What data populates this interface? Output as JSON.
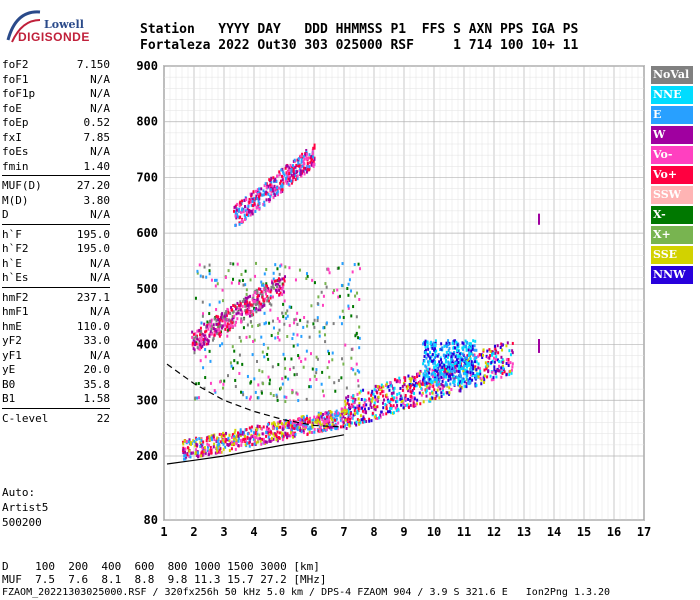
{
  "logo": {
    "top_text": "Lowell",
    "bottom_text": "DIGISONDE"
  },
  "header": {
    "line1": "Station   YYYY DAY   DDD HHMMSS P1  FFS S AXN PPS IGA PS",
    "line2": "Fortaleza 2022 Out30 303 025000 RSF     1 714 100 10+ 11"
  },
  "params": [
    {
      "label": "foF2",
      "value": "7.150"
    },
    {
      "label": "foF1",
      "value": "N/A"
    },
    {
      "label": "foF1p",
      "value": "N/A"
    },
    {
      "label": "foE",
      "value": "N/A"
    },
    {
      "label": "foEp",
      "value": "0.52"
    },
    {
      "label": "fxI",
      "value": "7.85"
    },
    {
      "label": "foEs",
      "value": "N/A"
    },
    {
      "label": "fmin",
      "value": "1.40"
    },
    {
      "label": "MUF(D)",
      "value": "27.20"
    },
    {
      "label": "M(D)",
      "value": "3.80"
    },
    {
      "label": "D",
      "value": "N/A"
    },
    {
      "label": "h`F",
      "value": "195.0"
    },
    {
      "label": "h`F2",
      "value": "195.0"
    },
    {
      "label": "h`E",
      "value": "N/A"
    },
    {
      "label": "h`Es",
      "value": "N/A"
    },
    {
      "label": "hmF2",
      "value": "237.1"
    },
    {
      "label": "hmF1",
      "value": "N/A"
    },
    {
      "label": "hmE",
      "value": "110.0"
    },
    {
      "label": "yF2",
      "value": "33.0"
    },
    {
      "label": "yF1",
      "value": "N/A"
    },
    {
      "label": "yE",
      "value": "20.0"
    },
    {
      "label": "B0",
      "value": "35.8"
    },
    {
      "label": "B1",
      "value": "1.58"
    },
    {
      "label": "C-level",
      "value": "22"
    }
  ],
  "auto": [
    "Auto:",
    "Artist5",
    "500200"
  ],
  "legend": [
    {
      "label": "NoVal",
      "color": "#808080"
    },
    {
      "label": "NNE",
      "color": "#00dcff"
    },
    {
      "label": "E",
      "color": "#28a0ff"
    },
    {
      "label": "W",
      "color": "#a000a0"
    },
    {
      "label": "Vo-",
      "color": "#ff40c0"
    },
    {
      "label": "Vo+",
      "color": "#ff0040"
    },
    {
      "label": "SSW",
      "color": "#ffb4b4"
    },
    {
      "label": "X-",
      "color": "#007800"
    },
    {
      "label": "X+",
      "color": "#78b450"
    },
    {
      "label": "SSE",
      "color": "#d2d200"
    },
    {
      "label": "NNW",
      "color": "#2800dc"
    }
  ],
  "footer": {
    "d_row": "D    100  200  400  600  800 1000 1500 3000 [km]",
    "muf_row": "MUF  7.5  7.6  8.1  8.8  9.8 11.3 15.7 27.2 [MHz]",
    "file_row": "FZAOM_20221303025000.RSF / 320fx256h 50 kHz 5.0 km / DPS-4 FZAOM 904 / 3.9 S 321.6 E   Ion2Png 1.3.20"
  },
  "chart_data": {
    "type": "scatter",
    "xlabel": "",
    "ylabel": "",
    "xlim": [
      1,
      17
    ],
    "ylim": [
      80,
      900
    ],
    "x_ticks": [
      "1",
      "2",
      "3",
      "4",
      "5",
      "6",
      "7",
      "8",
      "9",
      "10",
      "11",
      "12",
      "13",
      "14",
      "15",
      "16",
      "17"
    ],
    "y_ticks": [
      "80",
      "200",
      "300",
      "400",
      "500",
      "600",
      "700",
      "800",
      "900"
    ],
    "y_tick_values": [
      80,
      200,
      300,
      400,
      500,
      600,
      700,
      800,
      900
    ],
    "grid": true,
    "clusters": [
      {
        "name": "F-trace",
        "x": [
          1.6,
          7.2
        ],
        "y": [
          195,
          270
        ],
        "colors": [
          "#ff40c0",
          "#ff0040",
          "#a000a0",
          "#28a0ff",
          "#d2d200"
        ]
      },
      {
        "name": "F-trace-high",
        "x": [
          7.0,
          12.6
        ],
        "y": [
          240,
          400
        ],
        "colors": [
          "#ff40c0",
          "#ff0040",
          "#a000a0",
          "#d2d200",
          "#00dcff",
          "#2800dc"
        ]
      },
      {
        "name": "spread",
        "x": [
          2.0,
          7.5
        ],
        "y": [
          300,
          550
        ],
        "colors": [
          "#808080",
          "#78b450",
          "#007800",
          "#28a0ff",
          "#ff40c0"
        ]
      },
      {
        "name": "second-hop",
        "x": [
          1.9,
          5.0
        ],
        "y": [
          380,
          520
        ],
        "colors": [
          "#ff0040",
          "#ff40c0",
          "#a000a0",
          "#808080"
        ]
      },
      {
        "name": "third-hop",
        "x": [
          3.3,
          6.0
        ],
        "y": [
          610,
          760
        ],
        "colors": [
          "#ff0040",
          "#ff40c0",
          "#28a0ff",
          "#a000a0"
        ]
      },
      {
        "name": "cyan-patch",
        "x": [
          9.6,
          11.4
        ],
        "y": [
          330,
          410
        ],
        "colors": [
          "#00dcff",
          "#2800dc",
          "#28a0ff"
        ]
      }
    ],
    "curves": [
      {
        "name": "dashed-profile",
        "style": "dashed",
        "x": [
          1.1,
          2.0,
          3.0,
          4.0,
          5.0,
          6.0,
          7.0
        ],
        "y": [
          365,
          330,
          300,
          280,
          265,
          255,
          252
        ]
      },
      {
        "name": "solid-profile",
        "style": "solid",
        "x": [
          1.1,
          2.0,
          3.0,
          4.0,
          5.0,
          6.0,
          7.0
        ],
        "y": [
          185,
          192,
          200,
          210,
          220,
          228,
          238
        ]
      }
    ],
    "markers": [
      {
        "x": 13.5,
        "y": [
          615,
          635
        ],
        "color": "#a000a0"
      },
      {
        "x": 13.5,
        "y": [
          385,
          410
        ],
        "color": "#a000a0"
      }
    ]
  }
}
